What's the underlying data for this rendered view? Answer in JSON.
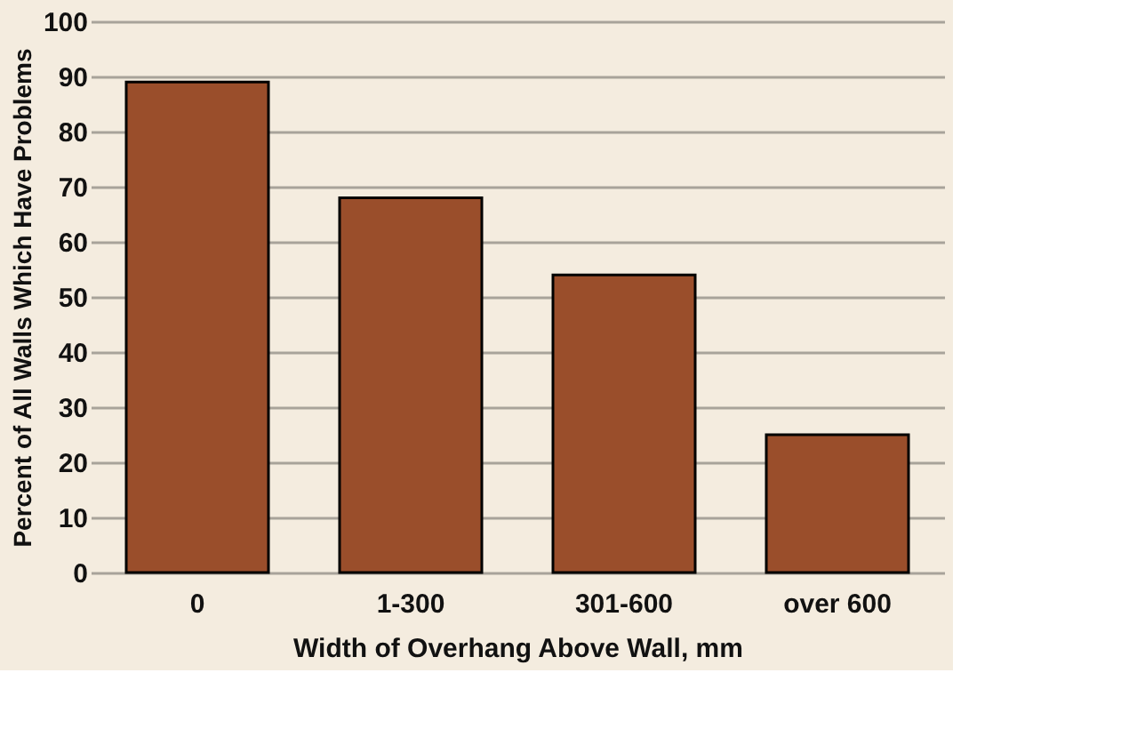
{
  "chart_data": {
    "type": "bar",
    "xlabel": "Width of Overhang Above Wall, mm",
    "ylabel": "Percent of All Walls Which Have Problems",
    "categories": [
      "0",
      "1-300",
      "301-600",
      "over 600"
    ],
    "values": [
      89,
      68,
      54,
      25
    ],
    "color": "#9a4e2b",
    "ylim": [
      0,
      100
    ],
    "yticks": [
      0,
      10,
      20,
      30,
      40,
      50,
      60,
      70,
      80,
      90,
      100
    ],
    "grid": "y"
  }
}
